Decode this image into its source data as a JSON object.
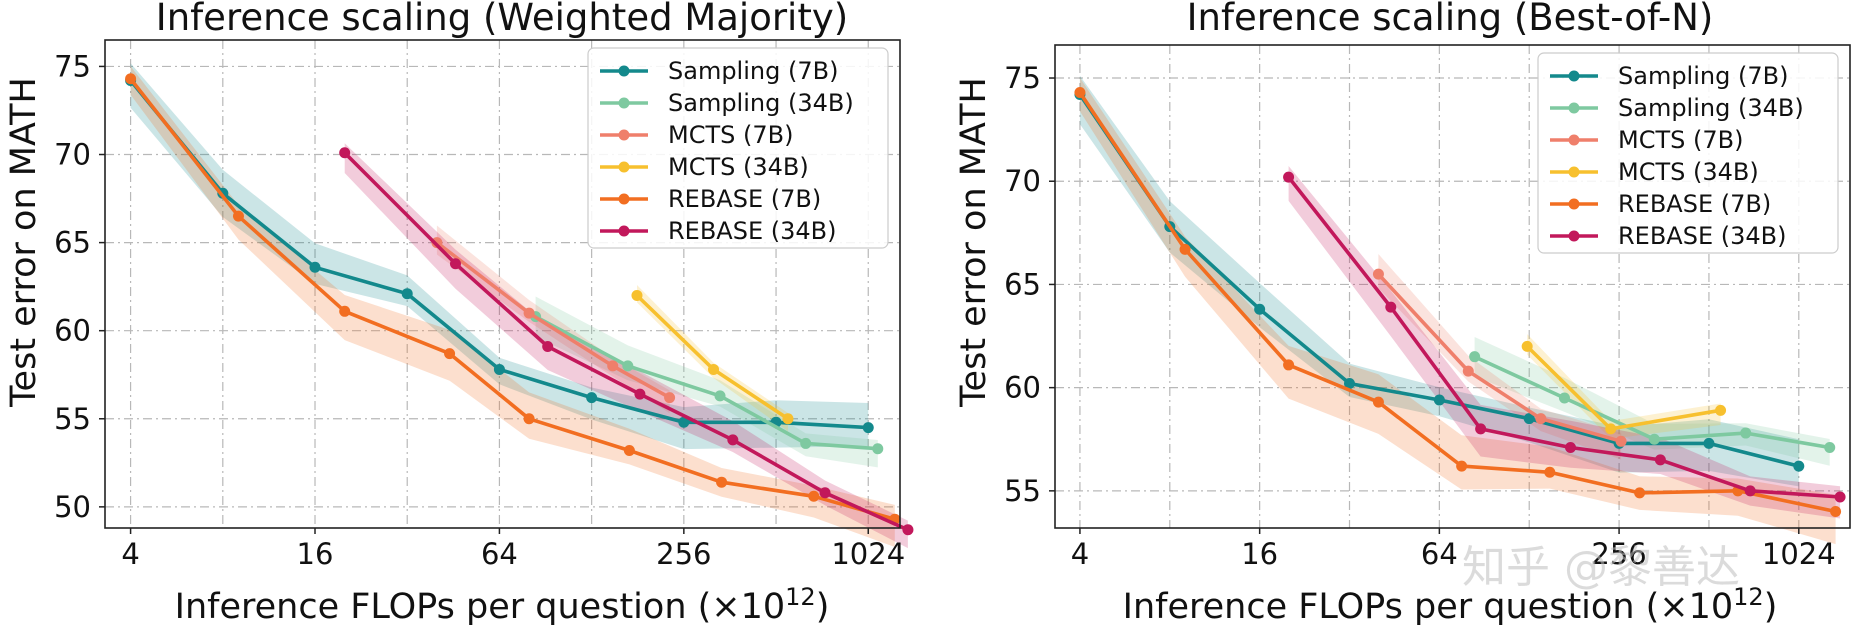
{
  "chart_data": [
    {
      "type": "line",
      "title": "Inference scaling (Weighted Majority)",
      "xlabel": "Inference FLOPs per question (×10",
      "xlabel_sup": "12",
      "xlabel_close": ")",
      "ylabel": "Test error on MATH",
      "xscale": "log2",
      "xlim": [
        3.3,
        1300
      ],
      "ylim": [
        48.8,
        76.5
      ],
      "xticks": [
        4,
        16,
        64,
        256,
        1024
      ],
      "xtick_labels": [
        "4",
        "16",
        "64",
        "256",
        "1024"
      ],
      "yticks": [
        50,
        55,
        60,
        65,
        70,
        75
      ],
      "ytick_labels": [
        "50",
        "55",
        "60",
        "65",
        "70",
        "75"
      ],
      "grid": true,
      "legend_position": "top-right",
      "series": [
        {
          "name": "Sampling (7B)",
          "color": "#13898c",
          "x": [
            4,
            8,
            16,
            32,
            64,
            128,
            256,
            512,
            1024
          ],
          "y": [
            74.2,
            67.8,
            63.6,
            62.1,
            57.8,
            56.2,
            54.8,
            54.8,
            54.5
          ],
          "band": 1.4
        },
        {
          "name": "Sampling (34B)",
          "color": "#7ec9a0",
          "x": [
            84,
            168,
            336,
            640,
            1100
          ],
          "y": [
            60.8,
            58.0,
            56.3,
            53.6,
            53.3
          ],
          "band": 1.2
        },
        {
          "name": "MCTS (7B)",
          "color": "#ef7f6b",
          "x": [
            40,
            80,
            150,
            230
          ],
          "y": [
            65.0,
            61.0,
            58.0,
            56.2
          ],
          "band": 1.0
        },
        {
          "name": "MCTS (34B)",
          "color": "#f7c02e",
          "x": [
            180,
            320,
            560
          ],
          "y": [
            62.0,
            57.8,
            55.0
          ],
          "band": 0.8
        },
        {
          "name": "REBASE (7B)",
          "color": "#f26e21",
          "x": [
            4,
            9,
            20,
            44,
            80,
            170,
            340,
            680,
            1250
          ],
          "y": [
            74.3,
            66.5,
            61.1,
            58.7,
            55.0,
            53.2,
            51.4,
            50.6,
            49.3
          ],
          "band": 1.5
        },
        {
          "name": "REBASE (34B)",
          "color": "#c2185b",
          "x": [
            20,
            46,
            92,
            184,
            370,
            740,
            1380
          ],
          "y": [
            70.1,
            63.8,
            59.1,
            56.4,
            53.8,
            50.8,
            48.7
          ],
          "band": 1.3
        }
      ]
    },
    {
      "type": "line",
      "title": "Inference scaling (Best-of-N)",
      "xlabel": "Inference FLOPs per question (×10",
      "xlabel_sup": "12",
      "xlabel_close": ")",
      "ylabel": "Test error on MATH",
      "xscale": "log2",
      "xlim": [
        3.3,
        1520
      ],
      "ylim": [
        53.2,
        76.6
      ],
      "xticks": [
        4,
        16,
        64,
        256,
        1024
      ],
      "xtick_labels": [
        "4",
        "16",
        "64",
        "256",
        "1024"
      ],
      "yticks": [
        55,
        60,
        65,
        70,
        75
      ],
      "ytick_labels": [
        "55",
        "60",
        "65",
        "70",
        "75"
      ],
      "grid": true,
      "legend_position": "top-right",
      "series": [
        {
          "name": "Sampling (7B)",
          "color": "#13898c",
          "x": [
            4,
            8,
            16,
            32,
            64,
            128,
            256,
            512,
            1024
          ],
          "y": [
            74.2,
            67.8,
            63.8,
            60.2,
            59.4,
            58.5,
            57.3,
            57.3,
            56.2
          ],
          "band": 1.3
        },
        {
          "name": "Sampling (34B)",
          "color": "#7ec9a0",
          "x": [
            84,
            168,
            336,
            680,
            1300
          ],
          "y": [
            61.5,
            59.5,
            57.5,
            57.8,
            57.1
          ],
          "band": 1.0
        },
        {
          "name": "MCTS (7B)",
          "color": "#ef7f6b",
          "x": [
            40,
            80,
            140,
            260
          ],
          "y": [
            65.5,
            60.8,
            58.5,
            57.4
          ],
          "band": 1.0
        },
        {
          "name": "MCTS (34B)",
          "color": "#f7c02e",
          "x": [
            126,
            240,
            560
          ],
          "y": [
            62.0,
            58.0,
            58.9
          ],
          "band": 0.8
        },
        {
          "name": "REBASE (7B)",
          "color": "#f26e21",
          "x": [
            4,
            9,
            20,
            40,
            76,
            150,
            300,
            640,
            1360
          ],
          "y": [
            74.3,
            66.7,
            61.1,
            59.3,
            56.2,
            55.9,
            54.9,
            55.0,
            54.0
          ],
          "band": 1.5
        },
        {
          "name": "REBASE (34B)",
          "color": "#c2185b",
          "x": [
            20,
            44,
            88,
            176,
            352,
            704,
            1408
          ],
          "y": [
            70.2,
            63.9,
            58.0,
            57.1,
            56.5,
            55.0,
            54.7
          ],
          "band": 1.3
        }
      ]
    }
  ],
  "watermark": "知乎 @黎善达"
}
